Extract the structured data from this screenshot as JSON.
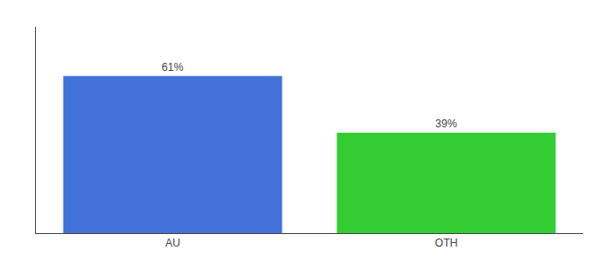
{
  "chart_data": {
    "type": "bar",
    "categories": [
      "AU",
      "OTH"
    ],
    "values": [
      61,
      39
    ],
    "value_labels": [
      "61%",
      "39%"
    ],
    "colors": [
      "#4472db",
      "#33cc33"
    ],
    "ylim": [
      0,
      80
    ],
    "grid": false,
    "data_labels": true,
    "tick_labels": "x"
  }
}
